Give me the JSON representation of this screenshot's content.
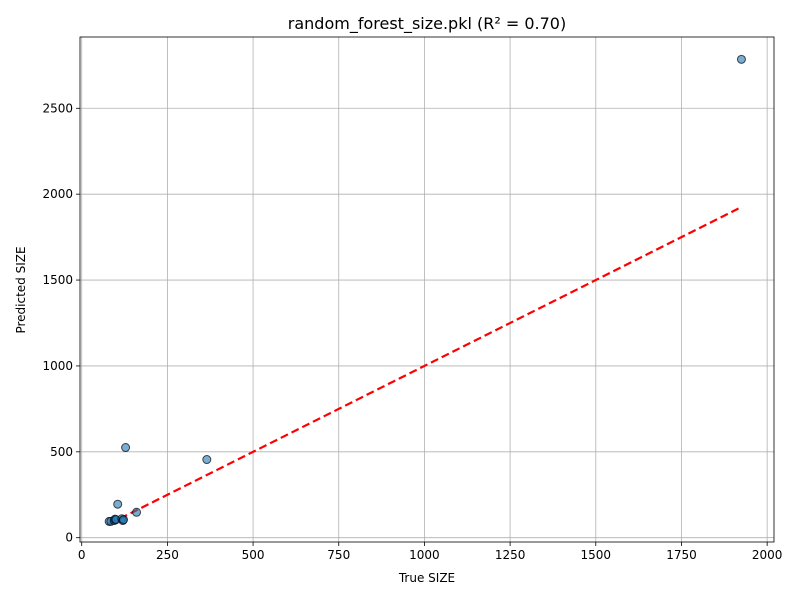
{
  "chart_data": {
    "type": "scatter",
    "title": "random_forest_size.pkl (R² = 0.70)",
    "xlabel": "True SIZE",
    "ylabel": "Predicted SIZE",
    "xlim": [
      -5,
      2020
    ],
    "ylim": [
      -25,
      2915
    ],
    "xticks": [
      0,
      250,
      500,
      750,
      1000,
      1250,
      1500,
      1750,
      2000
    ],
    "yticks": [
      0,
      500,
      1000,
      1500,
      2000,
      2500
    ],
    "grid": true,
    "points": [
      {
        "x": 80,
        "y": 95
      },
      {
        "x": 85,
        "y": 95
      },
      {
        "x": 95,
        "y": 100
      },
      {
        "x": 97,
        "y": 108
      },
      {
        "x": 100,
        "y": 105
      },
      {
        "x": 105,
        "y": 195
      },
      {
        "x": 117,
        "y": 110
      },
      {
        "x": 120,
        "y": 100
      },
      {
        "x": 122,
        "y": 105
      },
      {
        "x": 128,
        "y": 525
      },
      {
        "x": 160,
        "y": 148
      },
      {
        "x": 365,
        "y": 455
      },
      {
        "x": 1925,
        "y": 2785
      }
    ],
    "reference_line": {
      "x": [
        80,
        1925
      ],
      "y": [
        80,
        1925
      ],
      "color": "#ff0000",
      "style": "dashed"
    },
    "point_color": "#1f77b4"
  }
}
